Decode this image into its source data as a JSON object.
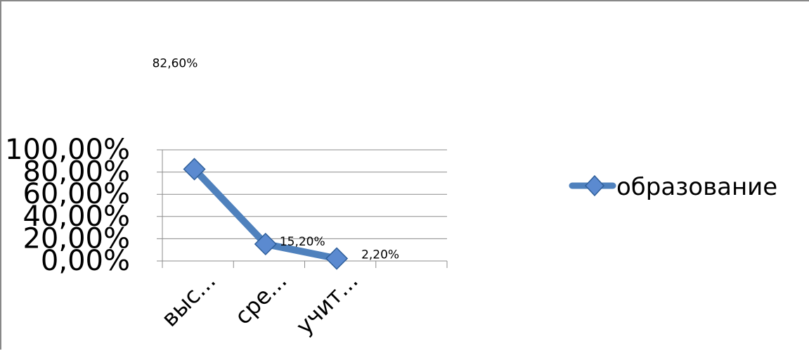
{
  "chart_data": {
    "type": "line",
    "categories": [
      "выс...",
      "сре...",
      "учит..."
    ],
    "series": [
      {
        "name": "образование",
        "values": [
          82.6,
          15.2,
          2.2
        ],
        "color": "#4f81bd"
      }
    ],
    "data_labels": [
      "82,60%",
      "15,20%",
      "2,20%"
    ],
    "y_ticks": [
      "0,00%",
      "20,00%",
      "40,00%",
      "60,00%",
      "80,00%",
      "100,00%"
    ],
    "ylim": [
      0,
      100
    ],
    "grid": true,
    "legend": "right"
  }
}
